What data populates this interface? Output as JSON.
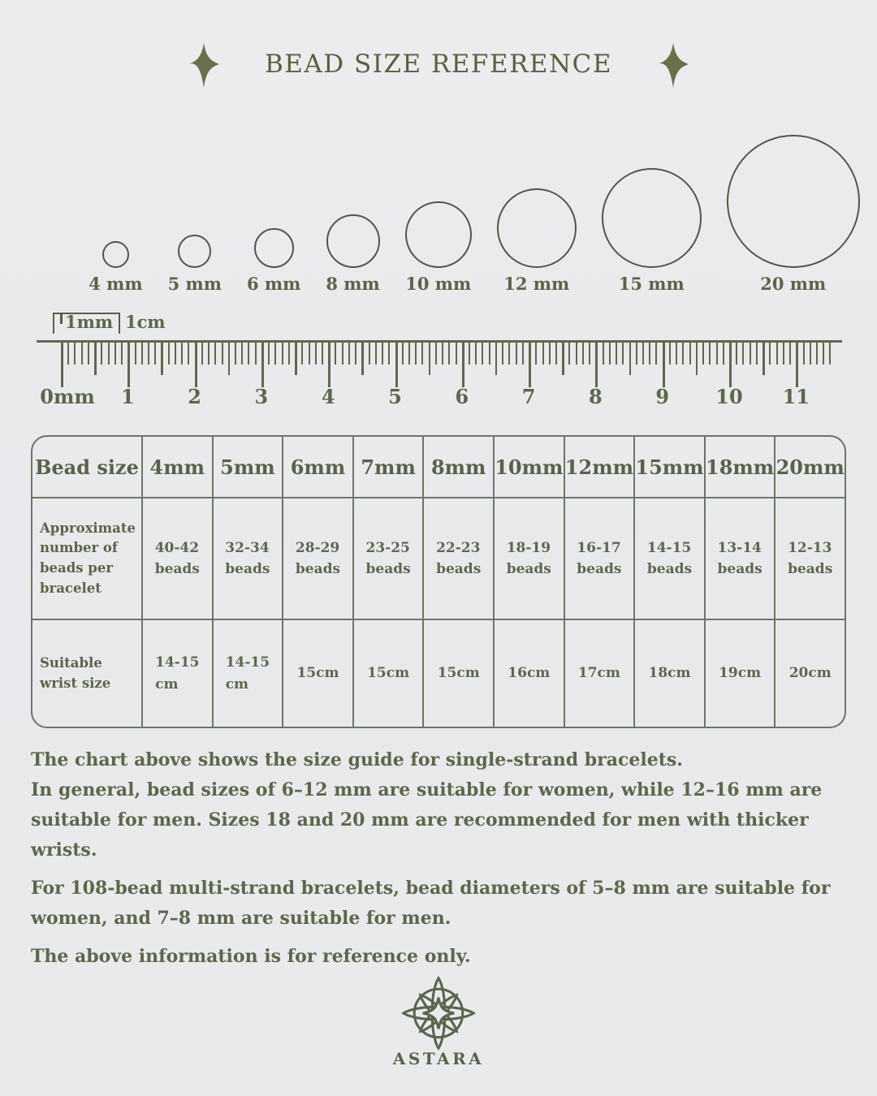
{
  "title": {
    "text": "BEAD SIZE REFERENCE"
  },
  "beads": {
    "items": [
      {
        "label": "4 mm",
        "mm": 4
      },
      {
        "label": "5 mm",
        "mm": 5
      },
      {
        "label": "6 mm",
        "mm": 6
      },
      {
        "label": "8 mm",
        "mm": 8
      },
      {
        "label": "10 mm",
        "mm": 10
      },
      {
        "label": "12 mm",
        "mm": 12
      },
      {
        "label": "15 mm",
        "mm": 15
      },
      {
        "label": "20 mm",
        "mm": 20
      }
    ]
  },
  "ruler": {
    "mm_label": "1mm",
    "cm_label": "1cm",
    "zero_label": "0mm",
    "cm_numbers": [
      "1",
      "2",
      "3",
      "4",
      "5",
      "6",
      "7",
      "8",
      "9",
      "10",
      "11"
    ]
  },
  "table": {
    "col_headers": [
      "Bead size",
      "4mm",
      "5mm",
      "6mm",
      "7mm",
      "8mm",
      "10mm",
      "12mm",
      "15mm",
      "18mm",
      "20mm"
    ],
    "rows": [
      {
        "label": "Approximate number of beads per bracelet",
        "values": [
          "40-42\nbeads",
          "32-34\nbeads",
          "28-29\nbeads",
          "23-25\nbeads",
          "22-23\nbeads",
          "18-19\nbeads",
          "16-17\nbeads",
          "14-15\nbeads",
          "13-14\nbeads",
          "12-13\nbeads"
        ]
      },
      {
        "label": "Suitable wrist size",
        "values": [
          "14-15\ncm",
          "14-15\ncm",
          "15cm",
          "15cm",
          "15cm",
          "16cm",
          "17cm",
          "18cm",
          "19cm",
          "20cm"
        ]
      }
    ]
  },
  "notes": {
    "p1": "The chart above shows the size guide for single-strand bracelets.\nIn general, bead sizes of 6–12 mm are suitable for women, while 12–16 mm are\nsuitable for men. Sizes 18 and 20 mm are recommended for men with thicker wrists.",
    "p2": "For 108-bead multi-strand bracelets, bead diameters of 5–8 mm are suitable for\nwomen, and 7–8 mm are suitable for men.",
    "p3": "The above information is for reference only."
  },
  "footer": {
    "brand": "ASTARA"
  },
  "colors": {
    "ink": "#5c664a",
    "table_line": "#6d7566",
    "background": "#e9eaec"
  }
}
